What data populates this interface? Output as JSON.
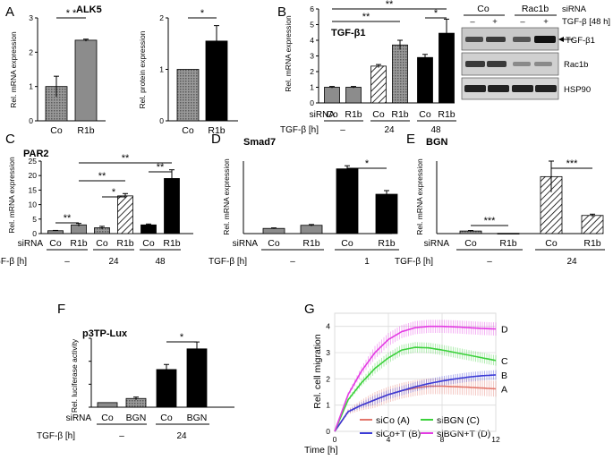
{
  "colors": {
    "bar_gray": "#8c8c8c",
    "bar_black": "#000000",
    "hatch": "#000000",
    "line_red": "#e3766b",
    "line_green": "#3bd13b",
    "line_blue": "#3a3ad6",
    "line_magenta": "#e33be3"
  },
  "panels": {
    "A": {
      "letter": "A",
      "title": "ALK5",
      "left": {
        "ylabel": "Rel. mRNA expression",
        "yticks": [
          "0",
          "1",
          "2",
          "3"
        ],
        "sig": "* *"
      },
      "right": {
        "ylabel": "Rel. protein expression",
        "yticks": [
          "0",
          "1",
          "2"
        ],
        "sig": "*"
      }
    },
    "B": {
      "letter": "B",
      "title": "TGF-β1",
      "ylabel": "Rel. mRNA expression",
      "yticks": [
        "0",
        "1",
        "2",
        "3",
        "4",
        "5",
        "6"
      ],
      "row_sirna": "siRNA",
      "row_tgf": "TGF-β [h]",
      "tgf_groups": [
        "–",
        "24",
        "48"
      ],
      "sig": [
        "**",
        "**",
        "*"
      ],
      "blot": {
        "col_co": "Co",
        "col_rac1b": "Rac1b",
        "sirna": "siRNA",
        "tgf": "TGF-β [48 h]",
        "lanes": [
          "–",
          "+",
          "–",
          "+"
        ],
        "bands": [
          "TGF-β1",
          "Rac1b",
          "HSP90"
        ]
      }
    },
    "C": {
      "letter": "C",
      "title": "PAR2",
      "ylabel": "Rel. mRNA expression",
      "yticks": [
        "0",
        "5",
        "10",
        "15",
        "20",
        "25"
      ],
      "row_sirna": "siRNA",
      "row_tgf": "TGF-β [h]",
      "tgf_groups": [
        "–",
        "24",
        "48"
      ],
      "sig": [
        "**",
        "**",
        "*",
        "**",
        "**"
      ]
    },
    "D": {
      "letter": "D",
      "title": "Smad7",
      "ylabel": "Rel. mRNA expression",
      "row_sirna": "siRNA",
      "row_tgf": "TGF-β [h]",
      "tgf_groups": [
        "–",
        "1"
      ],
      "sig": [
        "*"
      ]
    },
    "E": {
      "letter": "E",
      "title": "BGN",
      "ylabel": "Rel. mRNA expression",
      "row_sirna": "siRNA",
      "row_tgf": "TGF-β [h]",
      "tgf_groups": [
        "–",
        "24"
      ],
      "sig": [
        "***",
        "***"
      ]
    },
    "F": {
      "letter": "F",
      "title": "p3TP-Lux",
      "ylabel": "Rel. luciferase activity",
      "row_sirna": "siRNA",
      "row_tgf": "TGF-β [h]",
      "tgf_groups": [
        "–",
        "24"
      ],
      "sig": [
        "*"
      ]
    },
    "G": {
      "letter": "G",
      "ylabel": "Rel. cell migration",
      "xlabel": "Time [h]",
      "yticks": [
        "0",
        "1",
        "2",
        "3",
        "4"
      ],
      "xticks": [
        "0",
        "4",
        "8",
        "12"
      ],
      "legend": [
        "siCo (A)",
        "siBGN (C)",
        "siCo+T (B)",
        "siBGN+T (D)"
      ],
      "end_labels": [
        "A",
        "B",
        "C",
        "D"
      ]
    }
  },
  "chart_data": [
    {
      "panel": "A-mRNA",
      "type": "bar",
      "title": "ALK5",
      "ylabel": "Rel. mRNA expression",
      "ylim": [
        0,
        3
      ],
      "categories": [
        "Co",
        "R1b"
      ],
      "values": [
        1.0,
        2.35
      ],
      "errors": [
        0.3,
        0.03
      ]
    },
    {
      "panel": "A-protein",
      "type": "bar",
      "title": "ALK5",
      "ylabel": "Rel. protein expression",
      "ylim": [
        0,
        2
      ],
      "categories": [
        "Co",
        "R1b"
      ],
      "values": [
        1.0,
        1.55
      ],
      "errors": [
        0.0,
        0.3
      ]
    },
    {
      "panel": "B",
      "type": "bar",
      "title": "TGF-β1",
      "ylabel": "Rel. mRNA expression",
      "ylim": [
        0,
        6
      ],
      "categories": [
        "Co",
        "R1b",
        "Co",
        "R1b",
        "Co",
        "R1b"
      ],
      "tgf_beta_h": [
        "–",
        "–",
        "24",
        "24",
        "48",
        "48"
      ],
      "values": [
        1.0,
        1.0,
        2.35,
        3.7,
        2.9,
        4.45
      ],
      "errors": [
        0.05,
        0.05,
        0.1,
        0.3,
        0.2,
        0.9
      ]
    },
    {
      "panel": "C",
      "type": "bar",
      "title": "PAR2",
      "ylabel": "Rel. mRNA expression",
      "ylim": [
        0,
        25
      ],
      "categories": [
        "Co",
        "R1b",
        "Co",
        "R1b",
        "Co",
        "R1b"
      ],
      "tgf_beta_h": [
        "–",
        "–",
        "24",
        "24",
        "48",
        "48"
      ],
      "values": [
        1.0,
        3.0,
        2.0,
        13.0,
        3.0,
        19.0
      ],
      "errors": [
        0.1,
        0.5,
        0.5,
        0.8,
        0.3,
        3.0
      ]
    },
    {
      "panel": "D",
      "type": "bar",
      "title": "Smad7",
      "ylabel": "Rel. mRNA expression",
      "ylim": [
        0,
        14
      ],
      "categories": [
        "Co",
        "R1b",
        "Co",
        "R1b"
      ],
      "tgf_beta_h": [
        "–",
        "–",
        "1",
        "1"
      ],
      "values": [
        1.0,
        1.6,
        12.5,
        7.6
      ],
      "errors": [
        0.1,
        0.15,
        0.6,
        0.7
      ]
    },
    {
      "panel": "E",
      "type": "bar",
      "title": "BGN",
      "ylabel": "Rel. mRNA expression",
      "ylim": [
        0,
        28
      ],
      "categories": [
        "Co",
        "R1b",
        "Co",
        "R1b"
      ],
      "tgf_beta_h": [
        "–",
        "–",
        "24",
        "24"
      ],
      "values": [
        1.0,
        0.1,
        22.0,
        7.0
      ],
      "errors": [
        0.2,
        0.0,
        6.0,
        0.5
      ]
    },
    {
      "panel": "F",
      "type": "bar",
      "title": "p3TP-Lux",
      "ylabel": "Rel. luciferase activity",
      "ylim": [
        0,
        15
      ],
      "categories": [
        "Co",
        "BGN",
        "Co",
        "BGN"
      ],
      "tgf_beta_h": [
        "–",
        "–",
        "24",
        "24"
      ],
      "values": [
        1.0,
        1.9,
        8.2,
        12.7
      ],
      "errors": [
        0.0,
        0.3,
        1.1,
        1.5
      ]
    },
    {
      "panel": "G",
      "type": "line",
      "ylabel": "Rel. cell migration",
      "xlabel": "Time [h]",
      "xlim": [
        0,
        12
      ],
      "ylim": [
        0,
        4.5
      ],
      "x": [
        0,
        1,
        2,
        3,
        4,
        5,
        6,
        7,
        8,
        9,
        10,
        11,
        12
      ],
      "series": [
        {
          "name": "siCo (A)",
          "values": [
            0,
            0.75,
            1.0,
            1.2,
            1.4,
            1.55,
            1.65,
            1.72,
            1.72,
            1.7,
            1.68,
            1.65,
            1.62
          ]
        },
        {
          "name": "siCo+T (B)",
          "values": [
            0,
            0.75,
            1.0,
            1.2,
            1.4,
            1.55,
            1.7,
            1.82,
            1.92,
            2.0,
            2.07,
            2.12,
            2.15
          ]
        },
        {
          "name": "siBGN (C)",
          "values": [
            0,
            1.2,
            1.85,
            2.4,
            2.8,
            3.1,
            3.2,
            3.18,
            3.1,
            3.0,
            2.9,
            2.8,
            2.7
          ]
        },
        {
          "name": "siBGN+T (D)",
          "values": [
            0,
            1.4,
            2.3,
            3.0,
            3.5,
            3.8,
            3.95,
            4.0,
            4.0,
            3.98,
            3.95,
            3.92,
            3.9
          ]
        }
      ]
    }
  ]
}
